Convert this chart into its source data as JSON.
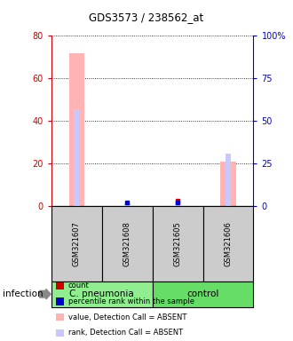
{
  "title": "GDS3573 / 238562_at",
  "samples": [
    "GSM321607",
    "GSM321608",
    "GSM321605",
    "GSM321606"
  ],
  "bar_value_absent": [
    72,
    0,
    0,
    21
  ],
  "bar_rank_absent_pct": [
    57,
    1.5,
    2,
    31
  ],
  "dot_count_val": [
    0,
    0,
    2.5,
    0
  ],
  "dot_rank_pct": [
    0,
    2,
    2,
    0
  ],
  "left_ylim": [
    0,
    80
  ],
  "right_ylim": [
    0,
    100
  ],
  "left_yticks": [
    0,
    20,
    40,
    60,
    80
  ],
  "right_yticks": [
    0,
    25,
    50,
    75,
    100
  ],
  "right_yticklabels": [
    "0",
    "25",
    "50",
    "75",
    "100%"
  ],
  "left_color": "#cc0000",
  "right_color": "#0000cc",
  "absent_bar_color": "#ffb3b3",
  "absent_rank_color": "#c8c8ff",
  "count_color": "#cc0000",
  "rank_color": "#0000cc",
  "legend": [
    {
      "label": "count",
      "color": "#cc0000"
    },
    {
      "label": "percentile rank within the sample",
      "color": "#0000cc"
    },
    {
      "label": "value, Detection Call = ABSENT",
      "color": "#ffb3b3"
    },
    {
      "label": "rank, Detection Call = ABSENT",
      "color": "#c8c8ff"
    }
  ],
  "infection_label": "infection",
  "groups_info": [
    {
      "text": "C. pneumonia",
      "start": 0,
      "end": 2,
      "color": "#90ee90"
    },
    {
      "text": "control",
      "start": 2,
      "end": 4,
      "color": "#66dd66"
    }
  ]
}
